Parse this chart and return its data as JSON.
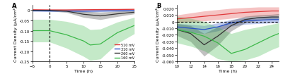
{
  "panel_A": {
    "title": "A",
    "xlabel": "Time (h)",
    "ylabel": "Current Density (μA/cm²)",
    "xlim": [
      -5,
      25
    ],
    "ylim": [
      -0.25,
      0.025
    ],
    "yticks": [
      0.0,
      -0.05,
      -0.1,
      -0.15,
      -0.2,
      -0.25
    ],
    "xticks": [
      -5,
      0,
      5,
      10,
      15,
      20,
      25
    ],
    "dashed_vline": 0,
    "lines": {
      "510mV": {
        "color": "#e0393b",
        "mean": [
          [
            -5,
            0.002
          ],
          [
            0,
            0.001
          ],
          [
            5,
            0.001
          ],
          [
            10,
            0.002
          ],
          [
            15,
            0.003
          ],
          [
            20,
            0.003
          ],
          [
            25,
            0.004
          ]
        ],
        "shade_upper": [
          [
            -5,
            0.006
          ],
          [
            0,
            0.005
          ],
          [
            5,
            0.005
          ],
          [
            10,
            0.007
          ],
          [
            15,
            0.007
          ],
          [
            20,
            0.008
          ],
          [
            25,
            0.008
          ]
        ],
        "shade_lower": [
          [
            -5,
            -0.002
          ],
          [
            0,
            -0.002
          ],
          [
            5,
            -0.002
          ],
          [
            10,
            -0.002
          ],
          [
            15,
            -0.001
          ],
          [
            20,
            -0.001
          ],
          [
            25,
            0.0
          ]
        ]
      },
      "310mV": {
        "color": "#2952c8",
        "mean": [
          [
            -5,
            -0.003
          ],
          [
            0,
            -0.004
          ],
          [
            5,
            -0.004
          ],
          [
            10,
            -0.005
          ],
          [
            15,
            -0.004
          ],
          [
            20,
            -0.003
          ],
          [
            25,
            -0.002
          ]
        ],
        "shade_upper": [
          [
            -5,
            0.0
          ],
          [
            0,
            0.0
          ],
          [
            5,
            0.0
          ],
          [
            10,
            0.0
          ],
          [
            15,
            0.001
          ],
          [
            20,
            0.001
          ],
          [
            25,
            0.002
          ]
        ],
        "shade_lower": [
          [
            -5,
            -0.006
          ],
          [
            0,
            -0.007
          ],
          [
            5,
            -0.008
          ],
          [
            10,
            -0.01
          ],
          [
            15,
            -0.008
          ],
          [
            20,
            -0.007
          ],
          [
            25,
            -0.005
          ]
        ]
      },
      "260mV": {
        "color": "#333333",
        "mean": [
          [
            -5,
            -0.001
          ],
          [
            0,
            -0.001
          ],
          [
            5,
            -0.005
          ],
          [
            10,
            -0.02
          ],
          [
            15,
            -0.028
          ],
          [
            20,
            -0.018
          ],
          [
            25,
            -0.01
          ]
        ],
        "shade_upper": [
          [
            -5,
            0.002
          ],
          [
            0,
            0.002
          ],
          [
            5,
            0.001
          ],
          [
            10,
            -0.005
          ],
          [
            15,
            -0.01
          ],
          [
            20,
            -0.005
          ],
          [
            25,
            -0.002
          ]
        ],
        "shade_lower": [
          [
            -5,
            -0.004
          ],
          [
            0,
            -0.004
          ],
          [
            5,
            -0.011
          ],
          [
            10,
            -0.035
          ],
          [
            15,
            -0.046
          ],
          [
            20,
            -0.031
          ],
          [
            25,
            -0.018
          ]
        ]
      },
      "160mV": {
        "color": "#3db84a",
        "mean": [
          [
            -5,
            -0.1
          ],
          [
            0,
            -0.1
          ],
          [
            5,
            -0.12
          ],
          [
            10,
            -0.15
          ],
          [
            12,
            -0.17
          ],
          [
            15,
            -0.165
          ],
          [
            20,
            -0.11
          ],
          [
            25,
            -0.075
          ]
        ],
        "shade_upper": [
          [
            -5,
            -0.045
          ],
          [
            0,
            -0.045
          ],
          [
            5,
            -0.055
          ],
          [
            10,
            -0.075
          ],
          [
            12,
            -0.095
          ],
          [
            15,
            -0.092
          ],
          [
            20,
            -0.058
          ],
          [
            25,
            -0.035
          ]
        ],
        "shade_lower": [
          [
            -5,
            -0.155
          ],
          [
            0,
            -0.155
          ],
          [
            5,
            -0.185
          ],
          [
            10,
            -0.225
          ],
          [
            12,
            -0.245
          ],
          [
            15,
            -0.238
          ],
          [
            20,
            -0.162
          ],
          [
            25,
            -0.115
          ]
        ]
      }
    },
    "legend_labels": [
      "510 mV",
      "310 mV",
      "260 mV",
      "160 mV"
    ],
    "legend_colors": [
      "#e0393b",
      "#2952c8",
      "#333333",
      "#3db84a"
    ]
  },
  "panel_B": {
    "title": "B",
    "xlabel": "Time (h)",
    "ylabel": "Current Density (μA/cm²)",
    "xlim": [
      10,
      25
    ],
    "ylim": [
      -0.06,
      0.025
    ],
    "yticks": [
      0.02,
      0.01,
      0.0,
      -0.01,
      -0.02,
      -0.03,
      -0.04,
      -0.05,
      -0.06
    ],
    "xticks": [
      10,
      12,
      14,
      16,
      18,
      20,
      22,
      24
    ],
    "dashed_hline": 0.0,
    "lines": {
      "510mV": {
        "color": "#e0393b",
        "mean": [
          [
            10,
            0.004
          ],
          [
            12,
            0.006
          ],
          [
            14,
            0.008
          ],
          [
            16,
            0.01
          ],
          [
            18,
            0.012
          ],
          [
            20,
            0.014
          ],
          [
            22,
            0.015
          ],
          [
            24,
            0.016
          ],
          [
            25,
            0.016
          ]
        ],
        "shade_upper": [
          [
            10,
            0.01
          ],
          [
            12,
            0.013
          ],
          [
            14,
            0.016
          ],
          [
            16,
            0.018
          ],
          [
            18,
            0.02
          ],
          [
            20,
            0.021
          ],
          [
            22,
            0.022
          ],
          [
            24,
            0.022
          ],
          [
            25,
            0.022
          ]
        ],
        "shade_lower": [
          [
            10,
            -0.002
          ],
          [
            12,
            0.0
          ],
          [
            14,
            0.001
          ],
          [
            16,
            0.003
          ],
          [
            18,
            0.005
          ],
          [
            20,
            0.007
          ],
          [
            22,
            0.008
          ],
          [
            24,
            0.009
          ],
          [
            25,
            0.01
          ]
        ]
      },
      "310mV": {
        "color": "#2952c8",
        "mean": [
          [
            10,
            -0.008
          ],
          [
            12,
            -0.01
          ],
          [
            14,
            -0.012
          ],
          [
            16,
            -0.008
          ],
          [
            18,
            -0.002
          ],
          [
            20,
            0.001
          ],
          [
            22,
            0.002
          ],
          [
            24,
            0.003
          ],
          [
            25,
            0.003
          ]
        ],
        "shade_upper": [
          [
            10,
            -0.003
          ],
          [
            12,
            -0.004
          ],
          [
            14,
            -0.006
          ],
          [
            16,
            -0.002
          ],
          [
            18,
            0.003
          ],
          [
            20,
            0.006
          ],
          [
            22,
            0.007
          ],
          [
            24,
            0.008
          ],
          [
            25,
            0.008
          ]
        ],
        "shade_lower": [
          [
            10,
            -0.013
          ],
          [
            12,
            -0.016
          ],
          [
            14,
            -0.018
          ],
          [
            16,
            -0.014
          ],
          [
            18,
            -0.007
          ],
          [
            20,
            -0.004
          ],
          [
            22,
            -0.003
          ],
          [
            24,
            -0.002
          ],
          [
            25,
            -0.002
          ]
        ]
      },
      "260mV": {
        "color": "#333333",
        "mean": [
          [
            10,
            -0.012
          ],
          [
            12,
            -0.018
          ],
          [
            14,
            -0.035
          ],
          [
            16,
            -0.022
          ],
          [
            18,
            -0.006
          ],
          [
            20,
            0.003
          ],
          [
            22,
            0.006
          ],
          [
            24,
            0.007
          ],
          [
            25,
            0.007
          ]
        ],
        "shade_upper": [
          [
            10,
            -0.003
          ],
          [
            12,
            -0.006
          ],
          [
            14,
            -0.018
          ],
          [
            16,
            -0.008
          ],
          [
            18,
            0.002
          ],
          [
            20,
            0.008
          ],
          [
            22,
            0.01
          ],
          [
            24,
            0.011
          ],
          [
            25,
            0.012
          ]
        ],
        "shade_lower": [
          [
            10,
            -0.021
          ],
          [
            12,
            -0.03
          ],
          [
            14,
            -0.052
          ],
          [
            16,
            -0.036
          ],
          [
            18,
            -0.014
          ],
          [
            20,
            -0.002
          ],
          [
            22,
            0.002
          ],
          [
            24,
            0.003
          ],
          [
            25,
            0.003
          ]
        ]
      },
      "160mV": {
        "color": "#3db84a",
        "mean": [
          [
            10,
            -0.012
          ],
          [
            12,
            -0.016
          ],
          [
            14,
            -0.022
          ],
          [
            16,
            -0.032
          ],
          [
            18,
            -0.048
          ],
          [
            20,
            -0.042
          ],
          [
            22,
            -0.032
          ],
          [
            24,
            -0.022
          ],
          [
            25,
            -0.018
          ]
        ],
        "shade_upper": [
          [
            10,
            0.008
          ],
          [
            12,
            0.005
          ],
          [
            14,
            0.0
          ],
          [
            16,
            -0.008
          ],
          [
            18,
            -0.018
          ],
          [
            20,
            -0.012
          ],
          [
            22,
            -0.008
          ],
          [
            24,
            -0.004
          ],
          [
            25,
            -0.002
          ]
        ],
        "shade_lower": [
          [
            10,
            -0.032
          ],
          [
            12,
            -0.037
          ],
          [
            14,
            -0.044
          ],
          [
            16,
            -0.056
          ],
          [
            18,
            -0.06
          ],
          [
            20,
            -0.058
          ],
          [
            22,
            -0.052
          ],
          [
            24,
            -0.042
          ],
          [
            25,
            -0.038
          ]
        ]
      }
    }
  }
}
